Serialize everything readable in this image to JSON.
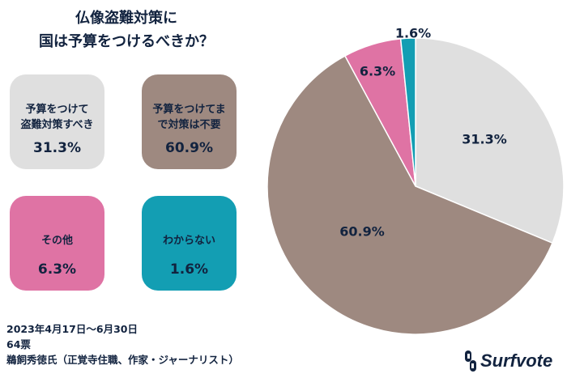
{
  "title_line1": "仏像盗難対策に",
  "title_line2": "国は予算をつけるべきか？",
  "chart_data": {
    "type": "pie",
    "title": "仏像盗難対策に国は予算をつけるべきか？",
    "slices": [
      {
        "label": "予算をつけて盗難対策すべき",
        "label_lines": [
          "予算をつけて",
          "盗難対策すべき"
        ],
        "value": 31.3,
        "display": "31.3%",
        "color": "#dfdfdf"
      },
      {
        "label": "予算をつけてまで対策は不要",
        "label_lines": [
          "予算をつけてま",
          "で対策は不要"
        ],
        "value": 60.9,
        "display": "60.9%",
        "color": "#9e8980"
      },
      {
        "label": "その他",
        "label_lines": [
          "その他"
        ],
        "value": 6.3,
        "display": "6.3%",
        "color": "#df73a4"
      },
      {
        "label": "わからない",
        "label_lines": [
          "わからない"
        ],
        "value": 1.6,
        "display": "1.6%",
        "color": "#139eb3"
      }
    ]
  },
  "footer": {
    "period": "2023年4月17日～6月30日",
    "votes": "64票",
    "author": "鵜飼秀徳氏（正覚寺住職、作家・ジャーナリスト）"
  },
  "logo": {
    "text": "Surfvote",
    "icon": "surfvote-logo-icon",
    "color": "#12233f"
  }
}
